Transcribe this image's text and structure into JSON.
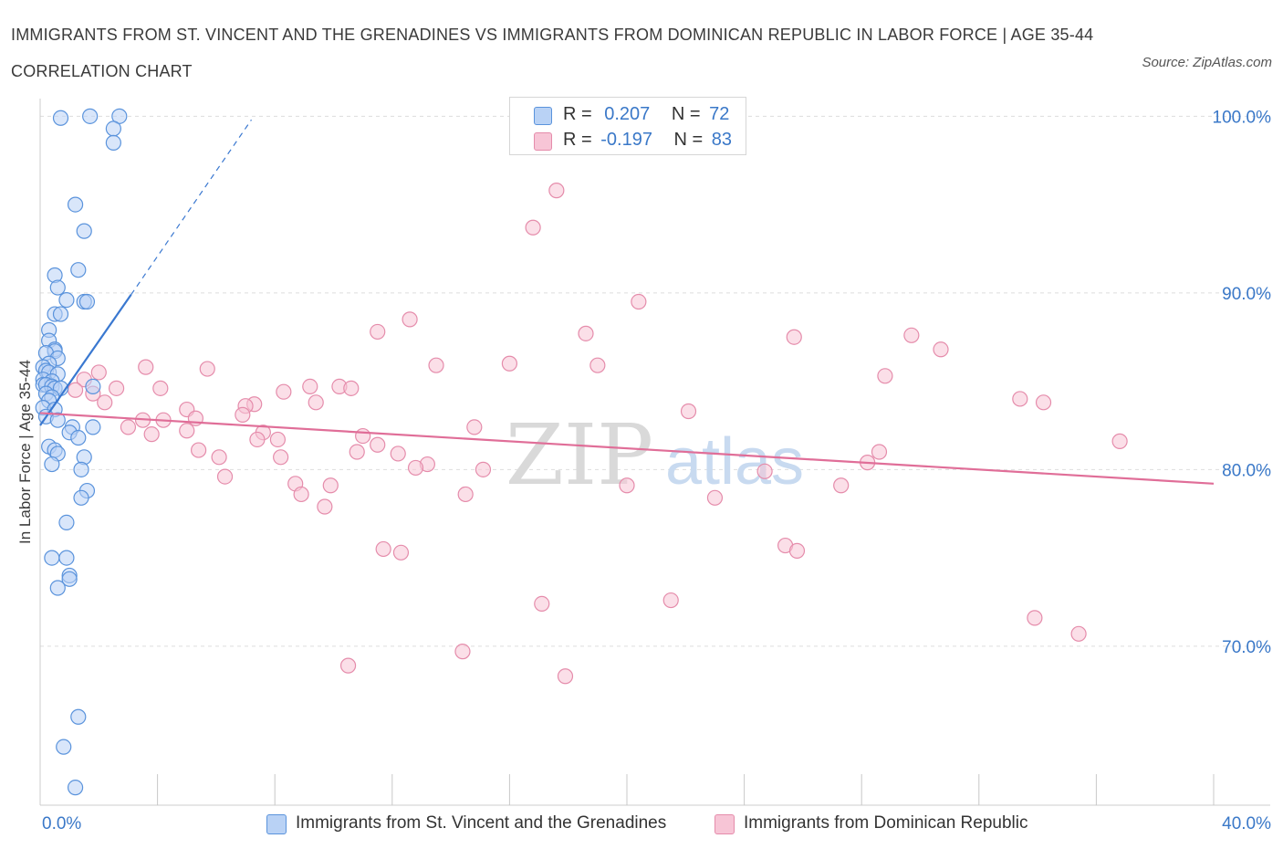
{
  "colors": {
    "blue_fill": "#b9d2f5",
    "blue_stroke": "#5a93dc",
    "blue_line": "#3a78d0",
    "pink_fill": "#f7c5d6",
    "pink_stroke": "#e58cab",
    "pink_line": "#e06e98",
    "grid": "#dddddd",
    "tick_label": "#3a78c8",
    "watermark": "#d9d9d9"
  },
  "chart_data": {
    "type": "scatter",
    "title": "IMMIGRANTS FROM ST. VINCENT AND THE GRENADINES VS IMMIGRANTS FROM DOMINICAN REPUBLIC IN LABOR FORCE | AGE 35-44 CORRELATION CHART",
    "source": "Source: ZipAtlas.com",
    "watermark": {
      "zip": "ZIP",
      "atlas": "atlas"
    },
    "ylabel": "In Labor Force | Age 35-44",
    "xlim": [
      0,
      40
    ],
    "ylim": [
      61,
      101
    ],
    "x_tick_labels": [
      {
        "value": 0,
        "label": "0.0%"
      },
      {
        "value": 40,
        "label": "40.0%"
      }
    ],
    "y_tick_labels": [
      {
        "value": 100,
        "label": "100.0%"
      },
      {
        "value": 90,
        "label": "90.0%"
      },
      {
        "value": 80,
        "label": "80.0%"
      },
      {
        "value": 70,
        "label": "70.0%"
      }
    ],
    "y_gridlines": [
      100,
      90,
      80,
      70
    ],
    "x_minor_ticks": [
      4,
      8,
      12,
      16,
      20,
      24,
      28,
      32,
      36,
      40
    ],
    "legend": {
      "r_label": "R =",
      "n_label": "N ="
    },
    "series": [
      {
        "name": "Immigrants from St. Vincent and the Grenadines",
        "R": "0.207",
        "N": "72",
        "color_key": "blue",
        "trend": {
          "x0": 0.0,
          "y0": 82.5,
          "x1": 3.1,
          "y1": 89.9,
          "dash_x1": 7.2,
          "dash_y1": 99.8
        },
        "points": [
          [
            0.7,
            99.9
          ],
          [
            1.7,
            100.0
          ],
          [
            2.7,
            100.0
          ],
          [
            2.5,
            99.3
          ],
          [
            2.5,
            98.5
          ],
          [
            1.2,
            95.0
          ],
          [
            1.5,
            93.5
          ],
          [
            1.3,
            91.3
          ],
          [
            0.5,
            91.0
          ],
          [
            0.6,
            90.3
          ],
          [
            0.9,
            89.6
          ],
          [
            1.5,
            89.5
          ],
          [
            1.6,
            89.5
          ],
          [
            0.5,
            88.8
          ],
          [
            0.7,
            88.8
          ],
          [
            0.3,
            87.9
          ],
          [
            0.3,
            87.3
          ],
          [
            0.5,
            86.8
          ],
          [
            0.5,
            86.7
          ],
          [
            0.2,
            86.6
          ],
          [
            0.6,
            86.3
          ],
          [
            0.3,
            86.0
          ],
          [
            0.1,
            85.8
          ],
          [
            0.2,
            85.6
          ],
          [
            0.3,
            85.5
          ],
          [
            0.6,
            85.4
          ],
          [
            0.1,
            85.1
          ],
          [
            0.4,
            85.0
          ],
          [
            0.1,
            84.8
          ],
          [
            0.2,
            84.8
          ],
          [
            0.4,
            84.7
          ],
          [
            0.5,
            84.6
          ],
          [
            0.7,
            84.6
          ],
          [
            1.8,
            84.7
          ],
          [
            0.2,
            84.3
          ],
          [
            0.4,
            84.1
          ],
          [
            0.3,
            83.9
          ],
          [
            0.1,
            83.5
          ],
          [
            0.5,
            83.4
          ],
          [
            0.2,
            83.0
          ],
          [
            0.6,
            82.8
          ],
          [
            1.1,
            82.4
          ],
          [
            1.8,
            82.4
          ],
          [
            1.0,
            82.1
          ],
          [
            1.3,
            81.8
          ],
          [
            0.3,
            81.3
          ],
          [
            0.5,
            81.1
          ],
          [
            0.6,
            80.9
          ],
          [
            1.5,
            80.7
          ],
          [
            0.4,
            80.3
          ],
          [
            1.4,
            80.0
          ],
          [
            1.6,
            78.8
          ],
          [
            1.4,
            78.4
          ],
          [
            0.9,
            77.0
          ],
          [
            0.4,
            75.0
          ],
          [
            0.9,
            75.0
          ],
          [
            1.0,
            74.0
          ],
          [
            1.0,
            73.8
          ],
          [
            0.6,
            73.3
          ],
          [
            1.3,
            66.0
          ],
          [
            0.8,
            64.3
          ],
          [
            1.2,
            62.0
          ]
        ]
      },
      {
        "name": "Immigrants from Dominican Republic",
        "R": "-0.197",
        "N": "83",
        "color_key": "pink",
        "trend": {
          "x0": 0.0,
          "y0": 83.2,
          "x1": 40.0,
          "y1": 79.2
        },
        "points": [
          [
            17.6,
            95.8
          ],
          [
            16.8,
            93.7
          ],
          [
            20.4,
            89.5
          ],
          [
            12.6,
            88.5
          ],
          [
            11.5,
            87.8
          ],
          [
            18.6,
            87.7
          ],
          [
            25.7,
            87.5
          ],
          [
            29.7,
            87.6
          ],
          [
            30.7,
            86.8
          ],
          [
            16.0,
            86.0
          ],
          [
            13.5,
            85.9
          ],
          [
            19.0,
            85.9
          ],
          [
            3.6,
            85.8
          ],
          [
            5.7,
            85.7
          ],
          [
            2.0,
            85.5
          ],
          [
            28.8,
            85.3
          ],
          [
            1.5,
            85.1
          ],
          [
            2.6,
            84.6
          ],
          [
            4.1,
            84.6
          ],
          [
            8.3,
            84.4
          ],
          [
            9.2,
            84.7
          ],
          [
            10.2,
            84.7
          ],
          [
            10.6,
            84.6
          ],
          [
            1.2,
            84.5
          ],
          [
            1.8,
            84.3
          ],
          [
            2.2,
            83.8
          ],
          [
            7.3,
            83.7
          ],
          [
            7.0,
            83.6
          ],
          [
            9.4,
            83.8
          ],
          [
            33.4,
            84.0
          ],
          [
            34.2,
            83.8
          ],
          [
            5.0,
            83.4
          ],
          [
            22.1,
            83.3
          ],
          [
            3.5,
            82.8
          ],
          [
            4.2,
            82.8
          ],
          [
            5.3,
            82.9
          ],
          [
            6.9,
            83.1
          ],
          [
            3.0,
            82.4
          ],
          [
            5.0,
            82.2
          ],
          [
            3.8,
            82.0
          ],
          [
            14.8,
            82.4
          ],
          [
            7.6,
            82.1
          ],
          [
            11.0,
            81.9
          ],
          [
            7.4,
            81.7
          ],
          [
            8.1,
            81.7
          ],
          [
            11.5,
            81.4
          ],
          [
            36.8,
            81.6
          ],
          [
            5.4,
            81.1
          ],
          [
            10.8,
            81.0
          ],
          [
            12.2,
            80.9
          ],
          [
            28.6,
            81.0
          ],
          [
            6.1,
            80.7
          ],
          [
            8.2,
            80.7
          ],
          [
            13.2,
            80.3
          ],
          [
            12.8,
            80.1
          ],
          [
            15.1,
            80.0
          ],
          [
            24.7,
            79.9
          ],
          [
            28.2,
            80.4
          ],
          [
            6.3,
            79.6
          ],
          [
            8.7,
            79.2
          ],
          [
            9.9,
            79.1
          ],
          [
            20.0,
            79.1
          ],
          [
            27.3,
            79.1
          ],
          [
            8.9,
            78.6
          ],
          [
            14.5,
            78.6
          ],
          [
            23.0,
            78.4
          ],
          [
            9.7,
            77.9
          ],
          [
            11.7,
            75.5
          ],
          [
            12.3,
            75.3
          ],
          [
            25.4,
            75.7
          ],
          [
            25.8,
            75.4
          ],
          [
            17.1,
            72.4
          ],
          [
            21.5,
            72.6
          ],
          [
            33.9,
            71.6
          ],
          [
            35.4,
            70.7
          ],
          [
            14.4,
            69.7
          ],
          [
            10.5,
            68.9
          ],
          [
            17.9,
            68.3
          ]
        ]
      }
    ]
  }
}
